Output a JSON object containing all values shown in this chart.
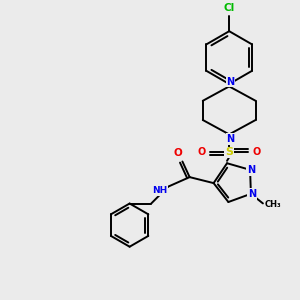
{
  "background_color": "#ebebeb",
  "atom_colors": {
    "C": "#000000",
    "N": "#0000ee",
    "O": "#ee0000",
    "S": "#cccc00",
    "Cl": "#00bb00",
    "H": "#000000"
  },
  "bond_color": "#000000",
  "lw": 1.4
}
